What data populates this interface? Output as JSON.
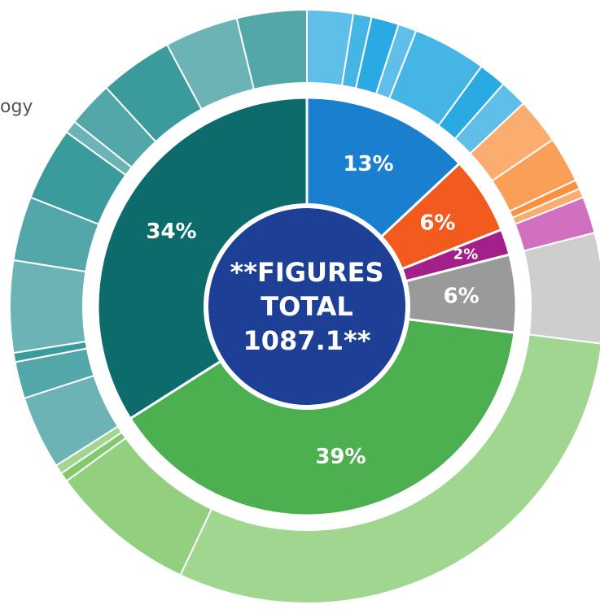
{
  "chart_data": {
    "type": "sunburst",
    "annotation": "ogy",
    "center_lines": [
      "**FIGURES",
      "TOTAL",
      "1087.1**"
    ],
    "center_color": "#1d3f96",
    "segments": [
      {
        "value": 13,
        "value_label": "13%",
        "color": "#1a7fcf",
        "outer_color": "#2aaae2",
        "children": [
          2.5,
          1,
          1.5,
          1,
          4,
          1.5,
          1.5
        ]
      },
      {
        "value": 6,
        "value_label": "6%",
        "color": "#f25a1e",
        "outer_color": "#f9913f",
        "children": [
          2.5,
          2.5,
          0.5,
          0.5
        ]
      },
      {
        "value": 2,
        "value_label": "2%",
        "color": "#a3208a",
        "outer_color": "#c040a8",
        "children": [
          2
        ]
      },
      {
        "value": 6,
        "value_label": "6%",
        "color": "#9a9a9a",
        "outer_color": "#bdbdbd",
        "children": [
          6
        ]
      },
      {
        "value": 39,
        "value_label": "39%",
        "color": "#4caf50",
        "outer_color": "#82c86c",
        "children": [
          30,
          8,
          0.5,
          0.5
        ]
      },
      {
        "value": 34,
        "value_label": "34%",
        "color": "#0d6b6b",
        "outer_color": "#3a9a9c",
        "children": [
          4,
          2,
          0.5,
          5,
          3.5,
          4,
          0.7,
          2.5,
          4,
          4,
          3.8
        ]
      }
    ]
  }
}
